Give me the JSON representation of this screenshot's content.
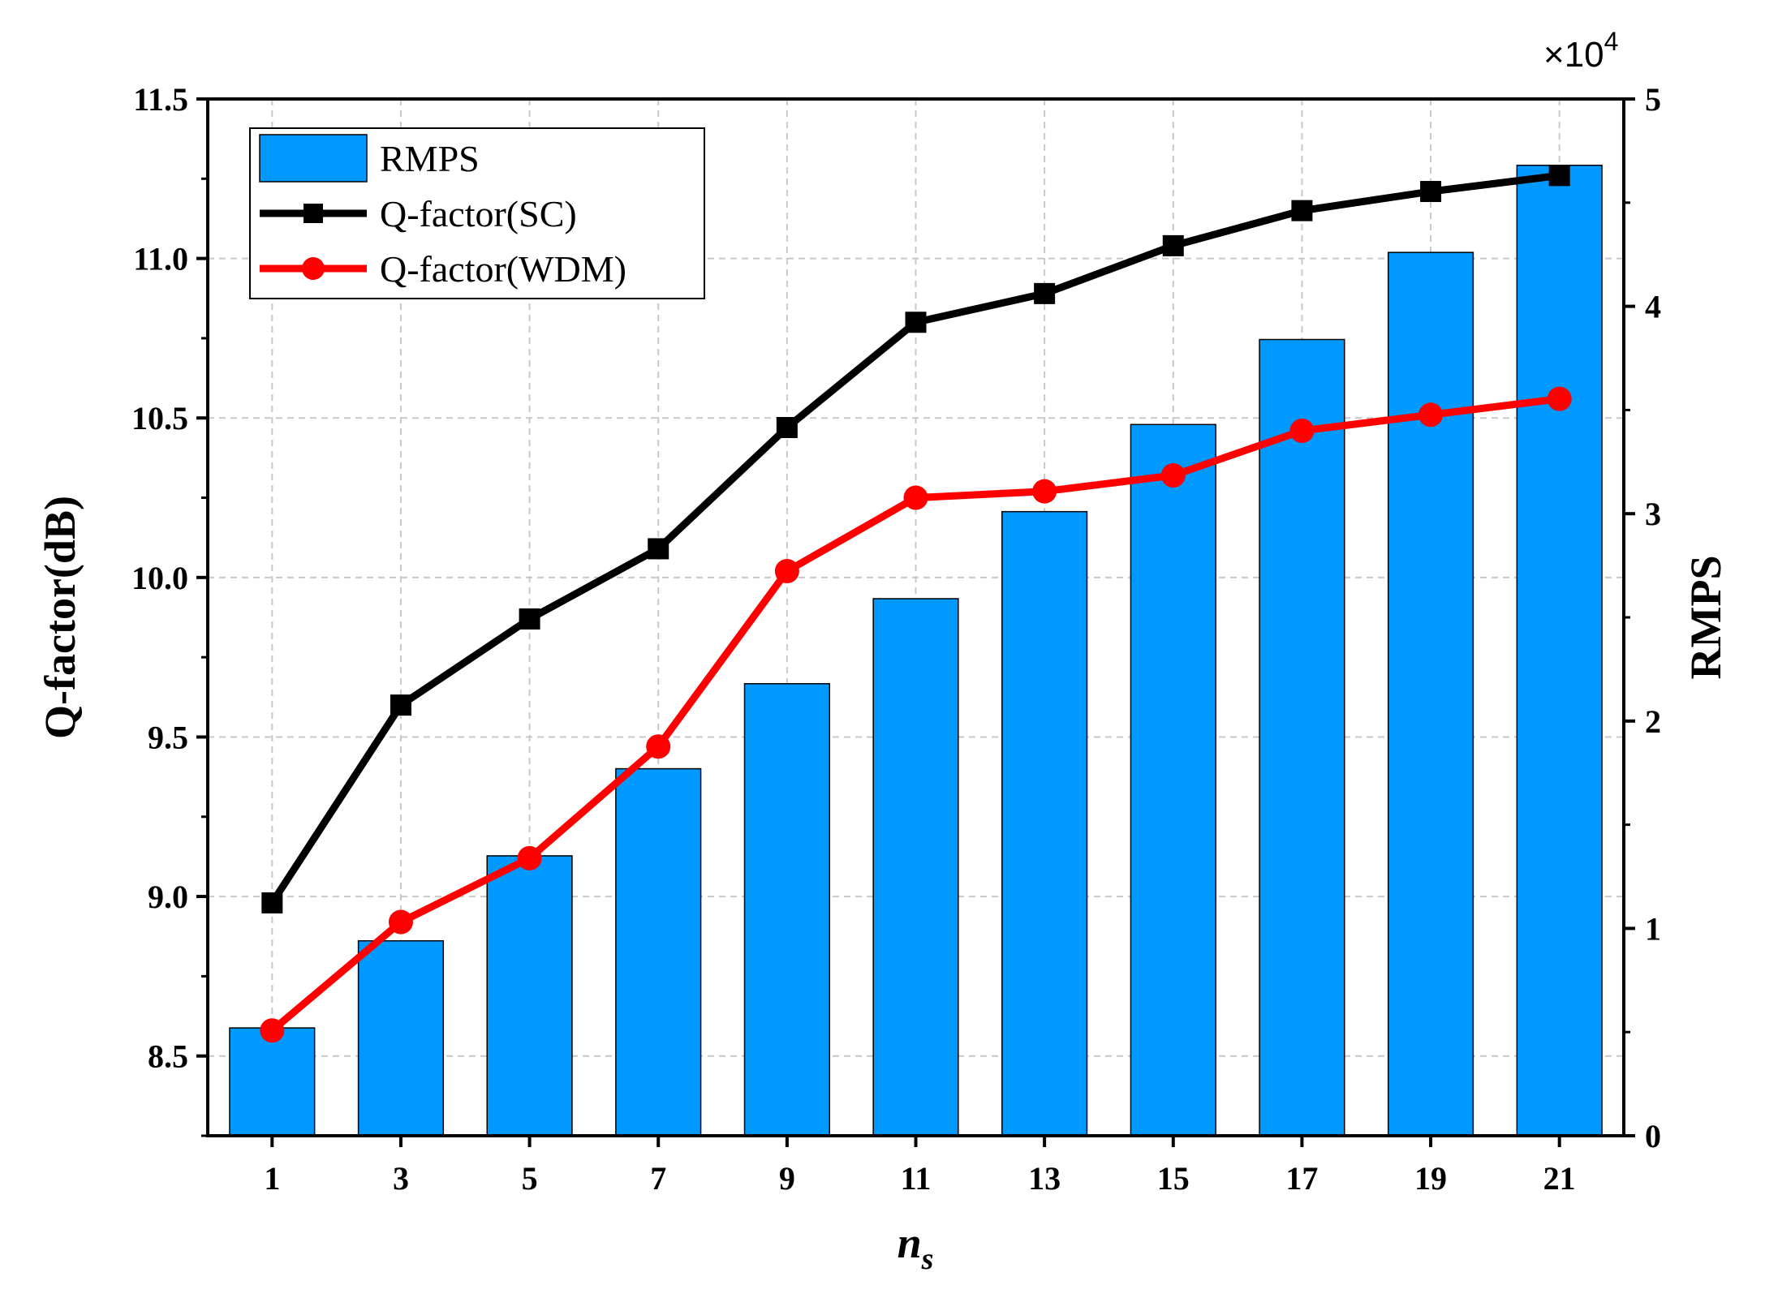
{
  "chart_data": {
    "type": "bar+line",
    "x": [
      1,
      3,
      5,
      7,
      9,
      11,
      13,
      15,
      17,
      19,
      21
    ],
    "x_tick_labels": [
      "1",
      "3",
      "5",
      "7",
      "9",
      "11",
      "13",
      "15",
      "17",
      "19",
      "21"
    ],
    "xlabel": "n",
    "xlabel_subscript": "s",
    "ylabel_left": "Q-factor(dB)",
    "ylabel_right": "RMPS",
    "ylim_left": [
      8.25,
      11.5
    ],
    "ylim_right": [
      0,
      50000
    ],
    "y_left_ticks": [
      "8.5",
      "9.0",
      "9.5",
      "10.0",
      "10.5",
      "11.0",
      "11.5"
    ],
    "y_left_tick_values": [
      8.5,
      9.0,
      9.5,
      10.0,
      10.5,
      11.0,
      11.5
    ],
    "y_right_ticks": [
      "0",
      "1",
      "2",
      "3",
      "4",
      "5"
    ],
    "y_right_tick_values": [
      0,
      10000,
      20000,
      30000,
      40000,
      50000
    ],
    "right_multiplier": {
      "base": "×10",
      "exponent": "4"
    },
    "grid": true,
    "legend_position": "top-left",
    "series": [
      {
        "name": "RMPS",
        "kind": "bar",
        "axis": "right",
        "color": "#0099ff",
        "values": [
          5200,
          9400,
          13500,
          17700,
          21800,
          25900,
          30100,
          34300,
          38400,
          42600,
          46800
        ]
      },
      {
        "name": "Q-factor(SC)",
        "kind": "line",
        "marker": "square",
        "axis": "left",
        "color": "#000000",
        "values": [
          8.98,
          9.6,
          9.87,
          10.09,
          10.47,
          10.8,
          10.89,
          11.04,
          11.15,
          11.21,
          11.26
        ]
      },
      {
        "name": "Q-factor(WDM)",
        "kind": "line",
        "marker": "circle",
        "axis": "left",
        "color": "#ff0000",
        "values": [
          8.58,
          8.92,
          9.12,
          9.47,
          10.02,
          10.25,
          10.27,
          10.32,
          10.46,
          10.51,
          10.56
        ]
      }
    ]
  }
}
